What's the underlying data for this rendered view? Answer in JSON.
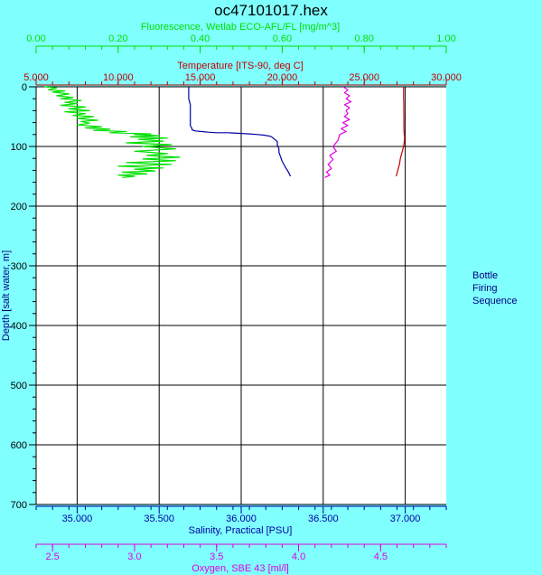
{
  "chart_data": {
    "type": "line",
    "title": "oc47101017.hex",
    "side_label": [
      "Bottle",
      "Firing",
      "Sequence"
    ],
    "colors": {
      "fluorescence": "#00e000",
      "temperature": "#c00000",
      "salinity": "#0000a0",
      "oxygen": "#e000e0",
      "grid": "#000000",
      "plot_bg": "#ffffff"
    },
    "y_axis": {
      "label": "Depth [salt water, m]",
      "range": [
        0,
        700
      ],
      "ticks": [
        "0",
        "100",
        "200",
        "300",
        "400",
        "500",
        "600",
        "700"
      ],
      "tick_values": [
        0,
        100,
        200,
        300,
        400,
        500,
        600,
        700
      ],
      "minor_step": 20,
      "inverted": true
    },
    "x_axes": [
      {
        "key": "fluorescence",
        "position": "top-outer",
        "label": "Fluorescence, Wetlab ECO-AFL/FL [mg/m^3]",
        "range": [
          0.0,
          1.0
        ],
        "ticks": [
          "0.00",
          "0.20",
          "0.40",
          "0.60",
          "0.80",
          "1.00"
        ],
        "tick_values": [
          0.0,
          0.2,
          0.4,
          0.6,
          0.8,
          1.0
        ],
        "minor_step": 0.04
      },
      {
        "key": "temperature",
        "position": "top-inner",
        "label": "Temperature [ITS-90, deg C]",
        "range": [
          5.0,
          30.0
        ],
        "ticks": [
          "5.000",
          "10.000",
          "15.000",
          "20.000",
          "25.000",
          "30.000"
        ],
        "tick_values": [
          5,
          10,
          15,
          20,
          25,
          30
        ],
        "minor_step": 1
      },
      {
        "key": "salinity",
        "position": "bottom-inner",
        "label": "Salinity, Practical [PSU]",
        "range": [
          34.75,
          37.25
        ],
        "ticks": [
          "35.000",
          "35.500",
          "36.000",
          "36.500",
          "37.000"
        ],
        "tick_values": [
          35.0,
          35.5,
          36.0,
          36.5,
          37.0
        ],
        "minor_step": 0.1
      },
      {
        "key": "oxygen",
        "position": "bottom-outer",
        "label": "Oxygen, SBE 43 [ml/l]",
        "range": [
          2.4,
          4.9
        ],
        "ticks": [
          "2.5",
          "3.0",
          "3.5",
          "4.0",
          "4.5"
        ],
        "tick_values": [
          2.5,
          3.0,
          3.5,
          4.0,
          4.5
        ],
        "minor_step": 0.1
      }
    ],
    "series": [
      {
        "key": "fluorescence",
        "name": "Fluorescence, Wetlab ECO-AFL/FL [mg/m^3]",
        "x": [
          0.02,
          0.05,
          0.03,
          0.07,
          0.04,
          0.08,
          0.05,
          0.09,
          0.06,
          0.11,
          0.07,
          0.1,
          0.06,
          0.12,
          0.08,
          0.13,
          0.07,
          0.12,
          0.09,
          0.14,
          0.1,
          0.15,
          0.11,
          0.13,
          0.1,
          0.16,
          0.12,
          0.18,
          0.14,
          0.22,
          0.18,
          0.28,
          0.24,
          0.3,
          0.23,
          0.32,
          0.25,
          0.31,
          0.22,
          0.33,
          0.26,
          0.34,
          0.24,
          0.32,
          0.27,
          0.35,
          0.26,
          0.34,
          0.22,
          0.33,
          0.2,
          0.31,
          0.24,
          0.29,
          0.21,
          0.27,
          0.2,
          0.24,
          0.21
        ],
        "y": [
          0,
          2,
          5,
          7,
          9,
          12,
          15,
          18,
          20,
          23,
          26,
          28,
          31,
          34,
          37,
          40,
          42,
          45,
          48,
          50,
          53,
          56,
          58,
          61,
          64,
          67,
          69,
          71,
          73,
          75,
          77,
          79,
          80,
          82,
          84,
          86,
          88,
          91,
          94,
          97,
          100,
          104,
          108,
          112,
          115,
          118,
          121,
          124,
          127,
          130,
          133,
          136,
          138,
          141,
          143,
          146,
          148,
          150,
          152
        ]
      },
      {
        "key": "salinity",
        "name": "Salinity, Practical [PSU]",
        "x": [
          35.68,
          35.68,
          35.68,
          35.69,
          35.69,
          35.69,
          35.69,
          35.69,
          35.7,
          35.7,
          35.72,
          35.76,
          35.8,
          35.85,
          35.92,
          35.99,
          36.05,
          36.1,
          36.14,
          36.18,
          36.2,
          36.22,
          36.22,
          36.23,
          36.23,
          36.25,
          36.27,
          36.29,
          36.3
        ],
        "y": [
          0,
          10,
          20,
          30,
          40,
          50,
          60,
          65,
          70,
          72,
          74,
          75,
          76,
          77,
          77,
          78,
          79,
          80,
          81,
          83,
          87,
          92,
          98,
          104,
          110,
          125,
          135,
          144,
          150
        ]
      },
      {
        "key": "temperature",
        "name": "Temperature [ITS-90, deg C]",
        "x": [
          27.4,
          27.4,
          27.4,
          27.41,
          27.41,
          27.42,
          27.42,
          27.42,
          27.44,
          27.46,
          27.45,
          27.4,
          27.3,
          27.2,
          27.15,
          27.05,
          26.95
        ],
        "y": [
          0,
          10,
          20,
          30,
          40,
          50,
          60,
          70,
          80,
          85,
          90,
          100,
          110,
          120,
          130,
          140,
          150
        ]
      },
      {
        "key": "oxygen",
        "name": "Oxygen, SBE 43 [ml/l]",
        "x": [
          4.27,
          4.3,
          4.28,
          4.31,
          4.29,
          4.32,
          4.28,
          4.31,
          4.29,
          4.3,
          4.28,
          4.31,
          4.27,
          4.3,
          4.26,
          4.29,
          4.25,
          4.24,
          4.21,
          4.23,
          4.19,
          4.21,
          4.18,
          4.2,
          4.17,
          4.19,
          4.16
        ],
        "y": [
          0,
          5,
          10,
          15,
          20,
          25,
          30,
          35,
          40,
          45,
          50,
          55,
          60,
          65,
          70,
          75,
          80,
          90,
          100,
          108,
          115,
          122,
          130,
          137,
          143,
          148,
          152
        ]
      }
    ]
  }
}
